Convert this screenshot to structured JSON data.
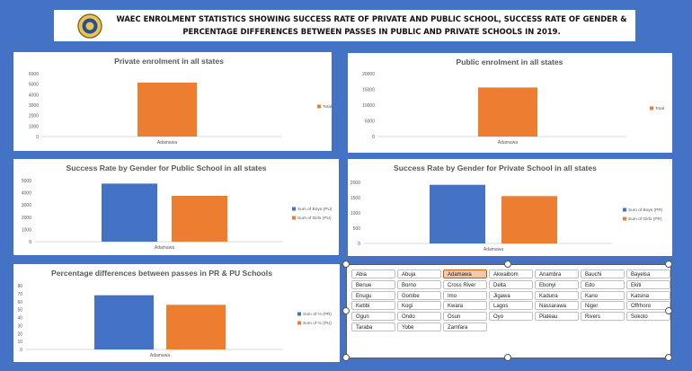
{
  "header": {
    "title": "WAEC ENROLMENT STATISTICS SHOWING SUCCESS RATE OF PRIVATE AND PUBLIC SCHOOL, SUCCESS RATE OF GENDER & PERCENTAGE DIFFERENCES BETWEEN PASSES IN PUBLIC AND PRIVATE SCHOOLS IN 2019.",
    "logo_icon": "waec-logo-icon"
  },
  "colors": {
    "blue": "#4472c4",
    "orange": "#ed7d31",
    "background": "#4472c4"
  },
  "chart_data": [
    {
      "type": "bar",
      "title": "Private enrolment in all states",
      "categories": [
        "Adamawa"
      ],
      "ylim": [
        0,
        6000
      ],
      "yticks": [
        0,
        1000,
        2000,
        3000,
        4000,
        5000,
        6000
      ],
      "series": [
        {
          "name": "Total",
          "values": [
            5150
          ],
          "color": "#ed7d31"
        }
      ],
      "legend": "right"
    },
    {
      "type": "bar",
      "title": "Public enrolment in all states",
      "categories": [
        "Adamawa"
      ],
      "ylim": [
        0,
        20000
      ],
      "yticks": [
        0,
        5000,
        10000,
        15000,
        20000
      ],
      "series": [
        {
          "name": "Total",
          "values": [
            15600
          ],
          "color": "#ed7d31"
        }
      ],
      "legend": "right"
    },
    {
      "type": "bar",
      "title": "Success Rate by Gender for Public School in all states",
      "categories": [
        "Adamawa"
      ],
      "ylim": [
        0,
        5000
      ],
      "yticks": [
        0,
        1000,
        2000,
        3000,
        4000,
        5000
      ],
      "series": [
        {
          "name": "Sum of Boys (PU)",
          "values": [
            4750
          ],
          "color": "#4472c4"
        },
        {
          "name": "Sum of Girls (PU)",
          "values": [
            3750
          ],
          "color": "#ed7d31"
        }
      ],
      "legend": "right"
    },
    {
      "type": "bar",
      "title": "Success Rate by Gender for Private School in all states",
      "categories": [
        "Adamawa"
      ],
      "ylim": [
        0,
        2000
      ],
      "yticks": [
        0,
        500,
        1000,
        1500,
        2000
      ],
      "series": [
        {
          "name": "Sum of Boys (PR)",
          "values": [
            1920
          ],
          "color": "#4472c4"
        },
        {
          "name": "Sum of Girls (PR)",
          "values": [
            1550
          ],
          "color": "#ed7d31"
        }
      ],
      "legend": "right"
    },
    {
      "type": "bar",
      "title": "Percentage differences between passes in PR & PU Schools",
      "categories": [
        "Adamawa"
      ],
      "ylim": [
        0,
        80
      ],
      "yticks": [
        0,
        10,
        20,
        30,
        40,
        50,
        60,
        70,
        80
      ],
      "series": [
        {
          "name": "Sum of % (PR)",
          "values": [
            68
          ],
          "color": "#4472c4"
        },
        {
          "name": "Sum of % (PU)",
          "values": [
            56
          ],
          "color": "#ed7d31"
        }
      ],
      "legend": "right"
    }
  ],
  "slicer": {
    "selected": "Adamawa",
    "items": [
      "Abia",
      "Abuja",
      "Adamawa",
      "Akwaibom",
      "Anambra",
      "Bauchi",
      "Bayelsa",
      "Benue",
      "Borno",
      "Cross River",
      "Delta",
      "Ebonyi",
      "Edo",
      "Ekiti",
      "Enugu",
      "Gombe",
      "Imo",
      "Jigawa",
      "Kaduna",
      "Kano",
      "Katsina",
      "Kebbi",
      "Kogi",
      "Kwara",
      "Lagos",
      "Nassarawa",
      "Niger",
      "Offrhoro",
      "Ogun",
      "Ondo",
      "Osun",
      "Oyo",
      "Plateau",
      "Rivers",
      "Sokoto",
      "Taraba",
      "Yobe",
      "Zamfara"
    ]
  }
}
